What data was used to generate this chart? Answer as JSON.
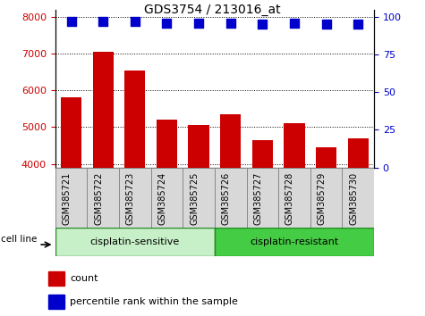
{
  "title": "GDS3754 / 213016_at",
  "samples": [
    "GSM385721",
    "GSM385722",
    "GSM385723",
    "GSM385724",
    "GSM385725",
    "GSM385726",
    "GSM385727",
    "GSM385728",
    "GSM385729",
    "GSM385730"
  ],
  "counts": [
    5800,
    7050,
    6550,
    5200,
    5050,
    5350,
    4650,
    5100,
    4450,
    4700
  ],
  "percentile_ranks": [
    97,
    97,
    97,
    96,
    96,
    96,
    95,
    96,
    95,
    95
  ],
  "bar_color": "#cc0000",
  "dot_color": "#0000cc",
  "ylim_left": [
    3900,
    8200
  ],
  "ylim_right": [
    0,
    105
  ],
  "yticks_left": [
    4000,
    5000,
    6000,
    7000,
    8000
  ],
  "yticks_right": [
    0,
    25,
    50,
    75,
    100
  ],
  "groups": [
    {
      "label": "cisplatin-sensitive",
      "start": 0,
      "end": 5,
      "color": "#c8f0c8"
    },
    {
      "label": "cisplatin-resistant",
      "start": 5,
      "end": 10,
      "color": "#44cc44"
    }
  ],
  "group_label_prefix": "cell line",
  "legend_count_label": "count",
  "legend_pct_label": "percentile rank within the sample",
  "tick_label_color_left": "#cc0000",
  "tick_label_color_right": "#0000cc",
  "bar_width": 0.65,
  "dot_size": 45,
  "dot_marker": "s",
  "grid_color": "black",
  "grid_linestyle": ":",
  "grid_linewidth": 0.7,
  "xticklabel_bg": "#d8d8d8",
  "xticklabel_border": "#888888"
}
